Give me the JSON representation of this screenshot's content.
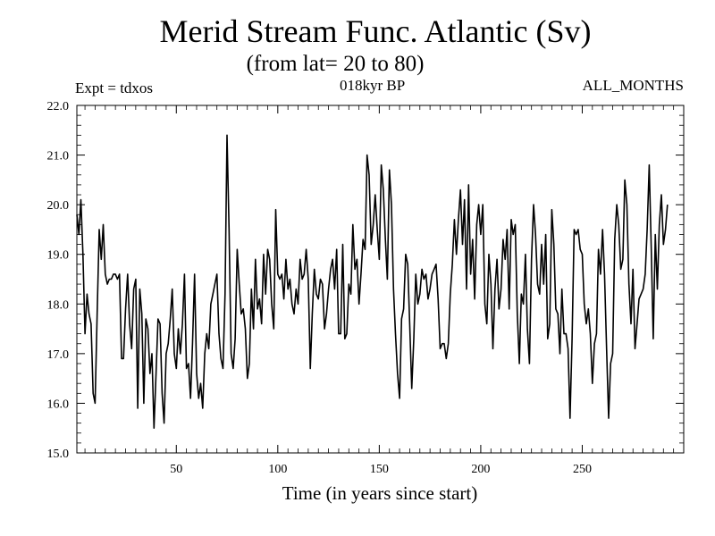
{
  "header": {
    "title": "Merid Stream Func. Atlantic (Sv)",
    "subtitle": "(from lat= 20 to 80)",
    "expt": "Expt = tdxos",
    "period": "018kyr BP",
    "months": "ALL_MONTHS"
  },
  "chart_data": {
    "type": "line",
    "title": "Merid Stream Func. Atlantic (Sv)",
    "subtitle": "(from lat= 20 to 80)",
    "xlabel": "Time (in years since start)",
    "ylabel": "",
    "xlim": [
      1,
      300
    ],
    "ylim": [
      15.0,
      22.0
    ],
    "xticks": [
      50,
      100,
      150,
      200,
      250
    ],
    "yticks": [
      "15.0",
      "16.0",
      "17.0",
      "18.0",
      "19.0",
      "20.0",
      "21.0",
      "22.0"
    ],
    "grid": false,
    "series": [
      {
        "x_start": 1,
        "x_step": 1,
        "values": [
          19.8,
          19.4,
          20.1,
          19.0,
          17.4,
          18.2,
          17.8,
          17.6,
          16.2,
          16.0,
          17.8,
          19.5,
          18.9,
          19.6,
          18.6,
          18.4,
          18.5,
          18.5,
          18.6,
          18.6,
          18.5,
          18.6,
          16.9,
          16.9,
          17.9,
          18.6,
          17.6,
          17.1,
          18.3,
          18.5,
          15.9,
          18.3,
          17.8,
          16.0,
          17.7,
          17.5,
          16.6,
          17.0,
          15.5,
          16.6,
          17.7,
          17.6,
          16.2,
          15.6,
          17.0,
          17.2,
          17.7,
          18.3,
          17.0,
          16.7,
          17.5,
          17.0,
          17.6,
          18.6,
          16.7,
          16.8,
          16.1,
          17.2,
          18.6,
          16.6,
          16.1,
          16.4,
          15.9,
          17.0,
          17.4,
          17.1,
          18.0,
          18.2,
          18.4,
          18.6,
          17.4,
          16.9,
          16.7,
          18.2,
          21.4,
          19.5,
          17.0,
          16.7,
          17.3,
          19.1,
          18.4,
          17.8,
          17.9,
          17.5,
          16.5,
          16.8,
          18.3,
          17.5,
          18.9,
          17.9,
          18.1,
          17.6,
          19.0,
          18.2,
          19.1,
          18.9,
          18.0,
          17.5,
          19.9,
          18.6,
          18.5,
          18.6,
          18.1,
          18.9,
          18.3,
          18.5,
          18.0,
          17.8,
          18.3,
          18.0,
          18.9,
          18.5,
          18.6,
          19.1,
          18.5,
          16.7,
          17.8,
          18.7,
          18.2,
          18.1,
          18.5,
          18.4,
          17.5,
          17.8,
          18.3,
          18.7,
          18.9,
          18.3,
          19.1,
          17.4,
          17.4,
          19.2,
          17.3,
          17.4,
          18.4,
          18.2,
          19.6,
          18.7,
          18.9,
          18.0,
          18.6,
          19.3,
          19.1,
          21.0,
          20.6,
          19.2,
          19.6,
          20.2,
          19.5,
          18.9,
          20.8,
          20.3,
          19.3,
          18.5,
          20.7,
          20.0,
          18.3,
          17.4,
          16.6,
          16.1,
          17.7,
          17.9,
          19.0,
          18.8,
          17.6,
          16.3,
          17.3,
          18.6,
          18.0,
          18.2,
          18.7,
          18.5,
          18.6,
          18.1,
          18.3,
          18.6,
          18.7,
          18.8,
          18.1,
          17.1,
          17.2,
          17.2,
          16.9,
          17.2,
          18.2,
          18.8,
          19.7,
          19.0,
          19.7,
          20.3,
          19.2,
          20.1,
          18.3,
          20.4,
          18.6,
          19.3,
          18.1,
          19.6,
          20.0,
          19.4,
          20.0,
          18.0,
          17.6,
          19.0,
          18.4,
          17.1,
          18.3,
          18.9,
          17.9,
          18.3,
          19.3,
          18.9,
          19.5,
          17.9,
          19.7,
          19.4,
          19.6,
          17.8,
          16.8,
          18.2,
          18.0,
          19.0,
          17.5,
          16.8,
          18.9,
          20.0,
          19.4,
          18.4,
          18.2,
          19.2,
          18.4,
          19.4,
          17.3,
          17.6,
          19.9,
          19.2,
          17.9,
          17.8,
          17.0,
          18.3,
          17.4,
          17.4,
          17.1,
          15.7,
          17.3,
          19.5,
          19.4,
          19.5,
          19.1,
          19.0,
          18.0,
          17.6,
          17.9,
          17.4,
          16.4,
          17.2,
          17.4,
          19.1,
          18.6,
          19.5,
          18.6,
          17.1,
          15.7,
          16.8,
          17.0,
          19.3,
          20.0,
          19.6,
          18.7,
          18.9,
          20.5,
          20.0,
          18.4,
          17.6,
          18.7,
          17.1,
          17.6,
          18.1,
          18.2,
          18.3,
          18.6,
          19.5,
          20.8,
          19.1,
          17.3,
          19.4,
          18.3,
          19.6,
          20.2,
          19.2,
          19.5,
          20.0
        ]
      }
    ]
  }
}
